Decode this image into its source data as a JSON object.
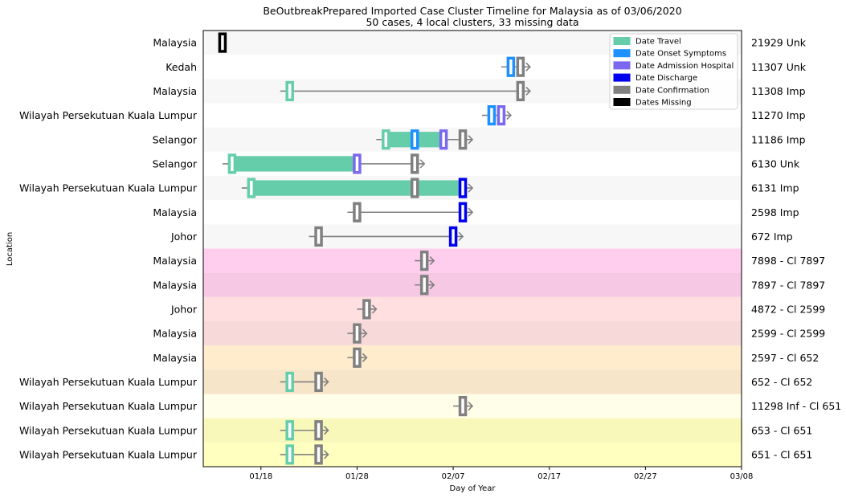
{
  "chart_data": {
    "type": "timeline",
    "title": "BeOutbreakPrepared Imported Case Cluster Timeline for Malaysia as of 03/06/2020",
    "subtitle": "50 cases, 4 local clusters, 33 missing data",
    "xlabel": "Day of Year",
    "ylabel": "Location",
    "x_ticks": [
      {
        "date": "2020-01-18",
        "label": "01/18"
      },
      {
        "date": "2020-01-28",
        "label": "01/28"
      },
      {
        "date": "2020-02-07",
        "label": "02/07"
      },
      {
        "date": "2020-02-17",
        "label": "02/17"
      },
      {
        "date": "2020-02-27",
        "label": "02/27"
      },
      {
        "date": "2020-03-08",
        "label": "03/08"
      }
    ],
    "x_range": [
      "2020-01-12",
      "2020-03-08"
    ],
    "legend": {
      "position": "top-right",
      "entries": [
        {
          "key": "travel",
          "label": "Date Travel",
          "color": "#66cdaa"
        },
        {
          "key": "onset",
          "label": "Date Onset Symptoms",
          "color": "#1e90ff"
        },
        {
          "key": "admission",
          "label": "Date Admission Hospital",
          "color": "#7b68ee"
        },
        {
          "key": "discharge",
          "label": "Date Discharge",
          "color": "#0000ee"
        },
        {
          "key": "confirmation",
          "label": "Date Confirmation",
          "color": "#808080"
        },
        {
          "key": "missing",
          "label": "Dates Missing",
          "color": "#000000"
        }
      ]
    },
    "rows": [
      {
        "location": "Malaysia",
        "case": "21929 Unk",
        "band": "#f7f7f7",
        "bar": null,
        "markers": [
          {
            "type": "missing",
            "date": "2020-01-14"
          }
        ]
      },
      {
        "location": "Kedah",
        "case": "11307 Unk",
        "band": "#ffffff",
        "bar": null,
        "markers": [
          {
            "type": "onset",
            "date": "2020-02-13"
          },
          {
            "type": "confirmation",
            "date": "2020-02-14"
          }
        ]
      },
      {
        "location": "Malaysia",
        "case": "11308 Imp",
        "band": "#f7f7f7",
        "bar": null,
        "markers": [
          {
            "type": "travel",
            "date": "2020-01-21"
          },
          {
            "type": "confirmation",
            "date": "2020-02-14"
          }
        ]
      },
      {
        "location": "Wilayah Persekutuan Kuala Lumpur",
        "case": "11270 Imp",
        "band": "#ffffff",
        "bar": null,
        "markers": [
          {
            "type": "onset",
            "date": "2020-02-11"
          },
          {
            "type": "admission",
            "date": "2020-02-12"
          }
        ]
      },
      {
        "location": "Selangor",
        "case": "11186 Imp",
        "band": "#f7f7f7",
        "bar": [
          "2020-01-31",
          "2020-02-06"
        ],
        "markers": [
          {
            "type": "travel",
            "date": "2020-01-31"
          },
          {
            "type": "onset",
            "date": "2020-02-03"
          },
          {
            "type": "admission",
            "date": "2020-02-06"
          },
          {
            "type": "confirmation",
            "date": "2020-02-08"
          }
        ]
      },
      {
        "location": "Selangor",
        "case": "6130 Unk",
        "band": "#ffffff",
        "bar": [
          "2020-01-15",
          "2020-01-28"
        ],
        "markers": [
          {
            "type": "travel",
            "date": "2020-01-15"
          },
          {
            "type": "admission",
            "date": "2020-01-28"
          },
          {
            "type": "confirmation",
            "date": "2020-02-03"
          }
        ]
      },
      {
        "location": "Wilayah Persekutuan Kuala Lumpur",
        "case": "6131 Imp",
        "band": "#f7f7f7",
        "bar": [
          "2020-01-17",
          "2020-02-08"
        ],
        "markers": [
          {
            "type": "travel",
            "date": "2020-01-17"
          },
          {
            "type": "confirmation",
            "date": "2020-02-03"
          },
          {
            "type": "discharge",
            "date": "2020-02-08"
          }
        ]
      },
      {
        "location": "Malaysia",
        "case": "2598 Imp",
        "band": "#ffffff",
        "bar": null,
        "markers": [
          {
            "type": "confirmation",
            "date": "2020-01-28"
          },
          {
            "type": "discharge",
            "date": "2020-02-08"
          }
        ]
      },
      {
        "location": "Johor",
        "case": "672 Imp",
        "band": "#f7f7f7",
        "bar": null,
        "markers": [
          {
            "type": "confirmation",
            "date": "2020-01-24"
          },
          {
            "type": "discharge",
            "date": "2020-02-07"
          }
        ]
      },
      {
        "location": "Malaysia",
        "case": "7898 - Cl 7897",
        "band": "#ffcdee",
        "bar": null,
        "markers": [
          {
            "type": "confirmation",
            "date": "2020-02-04"
          }
        ]
      },
      {
        "location": "Malaysia",
        "case": "7897 - Cl 7897",
        "band": "#f6c8e4",
        "bar": null,
        "markers": [
          {
            "type": "confirmation",
            "date": "2020-02-04"
          }
        ]
      },
      {
        "location": "Johor",
        "case": "4872 - Cl 2599",
        "band": "#ffdfe0",
        "bar": null,
        "markers": [
          {
            "type": "confirmation",
            "date": "2020-01-29"
          }
        ]
      },
      {
        "location": "Malaysia",
        "case": "2599 - Cl 2599",
        "band": "#f7d9d9",
        "bar": null,
        "markers": [
          {
            "type": "confirmation",
            "date": "2020-01-28"
          }
        ]
      },
      {
        "location": "Malaysia",
        "case": "2597 - Cl 652",
        "band": "#ffeccc",
        "bar": null,
        "markers": [
          {
            "type": "confirmation",
            "date": "2020-01-28"
          }
        ]
      },
      {
        "location": "Wilayah Persekutuan Kuala Lumpur",
        "case": "652 - Cl 652",
        "band": "#f6e5c8",
        "bar": null,
        "markers": [
          {
            "type": "travel",
            "date": "2020-01-21"
          },
          {
            "type": "confirmation",
            "date": "2020-01-24"
          }
        ]
      },
      {
        "location": "Wilayah Persekutuan Kuala Lumpur",
        "case": "11298 Inf - Cl 651",
        "band": "#ffffe9",
        "bar": null,
        "markers": [
          {
            "type": "confirmation",
            "date": "2020-02-08"
          }
        ]
      },
      {
        "location": "Wilayah Persekutuan Kuala Lumpur",
        "case": "653 - Cl 651",
        "band": "#f8f8bb",
        "bar": null,
        "markers": [
          {
            "type": "travel",
            "date": "2020-01-21"
          },
          {
            "type": "confirmation",
            "date": "2020-01-24"
          }
        ]
      },
      {
        "location": "Wilayah Persekutuan Kuala Lumpur",
        "case": "651 - Cl 651",
        "band": "#ffffc0",
        "bar": null,
        "markers": [
          {
            "type": "travel",
            "date": "2020-01-21"
          },
          {
            "type": "confirmation",
            "date": "2020-01-24"
          }
        ]
      }
    ]
  }
}
